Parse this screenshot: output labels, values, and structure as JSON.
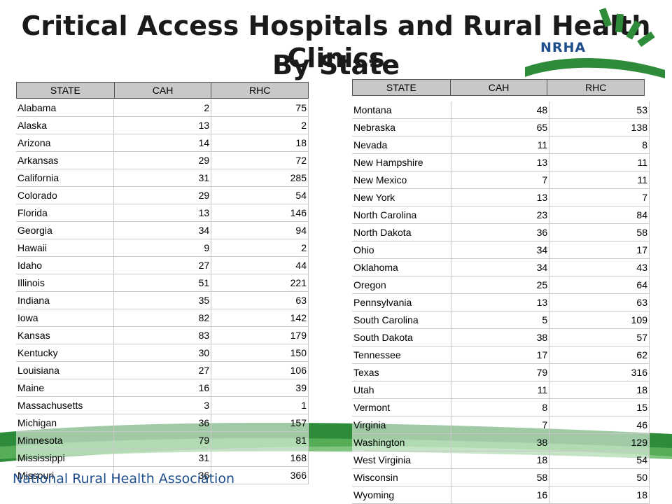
{
  "title": {
    "line1": "Critical Access Hospitals and Rural Health Clinics",
    "line2": "By State"
  },
  "logo": {
    "text": "NRHA"
  },
  "footer": {
    "text": "National Rural Health Association"
  },
  "colors": {
    "header_bg": "#c8c8c8",
    "brand_green": "#2e8b3a",
    "brand_blue": "#1f4e8c"
  },
  "table_headers": {
    "state": "STATE",
    "cah": "CAH",
    "rhc": "RHC"
  },
  "left_table": [
    {
      "state": "Alabama",
      "cah": "2",
      "rhc": "75"
    },
    {
      "state": "Alaska",
      "cah": "13",
      "rhc": "2"
    },
    {
      "state": "Arizona",
      "cah": "14",
      "rhc": "18"
    },
    {
      "state": "Arkansas",
      "cah": "29",
      "rhc": "72"
    },
    {
      "state": "California",
      "cah": "31",
      "rhc": "285"
    },
    {
      "state": "Colorado",
      "cah": "29",
      "rhc": "54"
    },
    {
      "state": "Florida",
      "cah": "13",
      "rhc": "146"
    },
    {
      "state": "Georgia",
      "cah": "34",
      "rhc": "94"
    },
    {
      "state": "Hawaii",
      "cah": "9",
      "rhc": "2"
    },
    {
      "state": "Idaho",
      "cah": "27",
      "rhc": "44"
    },
    {
      "state": "Illinois",
      "cah": "51",
      "rhc": "221"
    },
    {
      "state": "Indiana",
      "cah": "35",
      "rhc": "63"
    },
    {
      "state": "Iowa",
      "cah": "82",
      "rhc": "142"
    },
    {
      "state": "Kansas",
      "cah": "83",
      "rhc": "179"
    },
    {
      "state": "Kentucky",
      "cah": "30",
      "rhc": "150"
    },
    {
      "state": "Louisiana",
      "cah": "27",
      "rhc": "106"
    },
    {
      "state": "Maine",
      "cah": "16",
      "rhc": "39"
    },
    {
      "state": "Massachusetts",
      "cah": "3",
      "rhc": "1"
    },
    {
      "state": "Michigan",
      "cah": "36",
      "rhc": "157"
    },
    {
      "state": "Minnesota",
      "cah": "79",
      "rhc": "81"
    },
    {
      "state": "Mississippi",
      "cah": "31",
      "rhc": "168"
    },
    {
      "state": "Missouri",
      "cah": "36",
      "rhc": "366"
    }
  ],
  "right_table": [
    {
      "state": "Montana",
      "cah": "48",
      "rhc": "53"
    },
    {
      "state": "Nebraska",
      "cah": "65",
      "rhc": "138"
    },
    {
      "state": "Nevada",
      "cah": "11",
      "rhc": "8"
    },
    {
      "state": "New Hampshire",
      "cah": "13",
      "rhc": "11"
    },
    {
      "state": "New Mexico",
      "cah": "7",
      "rhc": "11"
    },
    {
      "state": "New York",
      "cah": "13",
      "rhc": "7"
    },
    {
      "state": "North Carolina",
      "cah": "23",
      "rhc": "84"
    },
    {
      "state": "North Dakota",
      "cah": "36",
      "rhc": "58"
    },
    {
      "state": "Ohio",
      "cah": "34",
      "rhc": "17"
    },
    {
      "state": "Oklahoma",
      "cah": "34",
      "rhc": "43"
    },
    {
      "state": "Oregon",
      "cah": "25",
      "rhc": "64"
    },
    {
      "state": "Pennsylvania",
      "cah": "13",
      "rhc": "63"
    },
    {
      "state": "South Carolina",
      "cah": "5",
      "rhc": "109"
    },
    {
      "state": "South Dakota",
      "cah": "38",
      "rhc": "57"
    },
    {
      "state": "Tennessee",
      "cah": "17",
      "rhc": "62"
    },
    {
      "state": "Texas",
      "cah": "79",
      "rhc": "316"
    },
    {
      "state": "Utah",
      "cah": "11",
      "rhc": "18"
    },
    {
      "state": "Vermont",
      "cah": "8",
      "rhc": "15"
    },
    {
      "state": "Virginia",
      "cah": "7",
      "rhc": "46"
    },
    {
      "state": "Washington",
      "cah": "38",
      "rhc": "129"
    },
    {
      "state": "West Virginia",
      "cah": "18",
      "rhc": "54"
    },
    {
      "state": "Wisconsin",
      "cah": "58",
      "rhc": "50"
    },
    {
      "state": "Wyoming",
      "cah": "16",
      "rhc": "18"
    }
  ]
}
